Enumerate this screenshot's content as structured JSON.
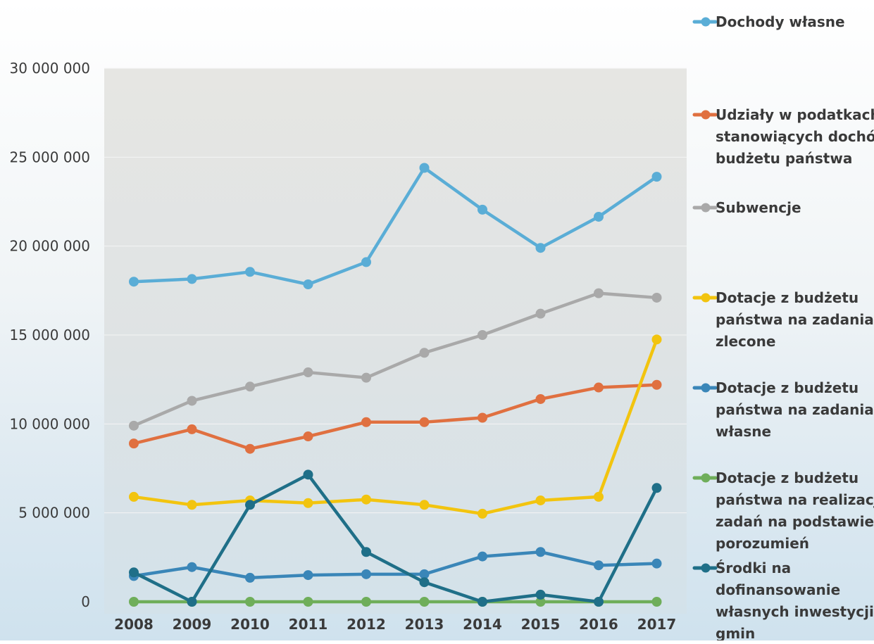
{
  "chart_data": {
    "type": "line",
    "title": "",
    "xlabel": "",
    "ylabel": "",
    "categories": [
      "2008",
      "2009",
      "2010",
      "2011",
      "2012",
      "2013",
      "2014",
      "2015",
      "2016",
      "2017"
    ],
    "ylim": [
      0,
      30000000
    ],
    "yticks": [
      0,
      5000000,
      10000000,
      15000000,
      20000000,
      25000000,
      30000000
    ],
    "ytick_labels": [
      "0",
      "5 000 000",
      "10 000 000",
      "15 000 000",
      "20 000 000",
      "25 000 000",
      "30 000 000"
    ],
    "grid": true,
    "legend_position": "right",
    "series": [
      {
        "name": "Dochody własne",
        "color": "#5AADD6",
        "values": [
          18000000,
          18150000,
          18550000,
          17850000,
          19100000,
          24400000,
          22050000,
          19900000,
          21650000,
          23900000
        ]
      },
      {
        "name": "Udziały w podatkach stanowiących dochód budżetu państwa",
        "color": "#E07040",
        "values": [
          8900000,
          9700000,
          8600000,
          9300000,
          10100000,
          10100000,
          10350000,
          11400000,
          12050000,
          12200000
        ]
      },
      {
        "name": "Subwencje",
        "color": "#A9A9A9",
        "values": [
          9900000,
          11300000,
          12100000,
          12900000,
          12600000,
          14000000,
          15000000,
          16200000,
          17350000,
          17100000
        ]
      },
      {
        "name": "Dotacje z budżetu państwa na zadania zlecone",
        "color": "#F2C40F",
        "values": [
          5900000,
          5450000,
          5700000,
          5550000,
          5750000,
          5450000,
          4950000,
          5700000,
          5900000,
          14750000
        ]
      },
      {
        "name": "Dotacje z budżetu państwa na zadania własne",
        "color": "#3A86B8",
        "values": [
          1450000,
          1950000,
          1350000,
          1500000,
          1550000,
          1550000,
          2550000,
          2800000,
          2050000,
          2150000
        ]
      },
      {
        "name": "Dotacje z budżetu państwa na realizację zadań na podstawie porozumień",
        "color": "#6FAE5A",
        "values": [
          0,
          0,
          0,
          0,
          0,
          0,
          0,
          0,
          0,
          0
        ]
      },
      {
        "name": "Środki na dofinansowanie własnych inwestycji gmin",
        "color": "#1F6F88",
        "values": [
          1650000,
          0,
          5450000,
          7150000,
          2800000,
          1100000,
          0,
          400000,
          0,
          6400000
        ]
      }
    ]
  },
  "legend": [
    {
      "lines": [
        "Dochody własne"
      ],
      "color": "#5AADD6"
    },
    {
      "lines": [
        "Udziały w podatkach",
        "stanowiących dochód",
        "budżetu państwa"
      ],
      "color": "#E07040"
    },
    {
      "lines": [
        "Subwencje"
      ],
      "color": "#A9A9A9"
    },
    {
      "lines": [
        "Dotacje z budżetu",
        "państwa na zadania",
        "zlecone"
      ],
      "color": "#F2C40F"
    },
    {
      "lines": [
        "Dotacje z budżetu",
        "państwa na zadania",
        "własne"
      ],
      "color": "#3A86B8"
    },
    {
      "lines": [
        "Dotacje z budżetu",
        "państwa na realizację",
        "zadań na podstawie",
        "porozumień"
      ],
      "color": "#6FAE5A"
    },
    {
      "lines": [
        "Środki na",
        "dofinansowanie",
        "własnych inwestycji",
        "gmin"
      ],
      "color": "#1F6F88"
    }
  ]
}
